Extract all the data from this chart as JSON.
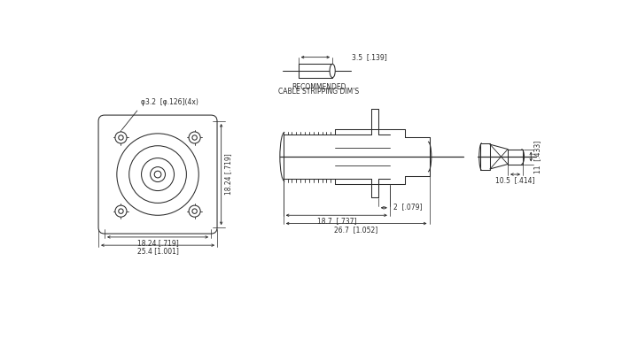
{
  "bg_color": "#ffffff",
  "line_color": "#2a2a2a",
  "dim_color": "#2a2a2a",
  "text_color": "#2a2a2a",
  "fig_width": 7.2,
  "fig_height": 3.91,
  "dpi": 100,
  "cable_strip_label_1": "RECOMMENDED",
  "cable_strip_label_2": "CABLE STRIPPING DIM'S",
  "cable_strip_dim": "3.5  [.139]",
  "dim_18_24_v": "18.24 [.719]",
  "dim_18_24_h": "18.24 [.719]",
  "dim_25_4": "25.4 [1.001]",
  "dim_phi": "φ3.2  [φ.126](4x)",
  "dim_2": "2  [.079]",
  "dim_18_7": "18.7  [.737]",
  "dim_26_7": "26.7  [1.052]",
  "dim_10_5": "10.5  [.414]",
  "dim_11": "11  [.433]",
  "fs": 5.5
}
